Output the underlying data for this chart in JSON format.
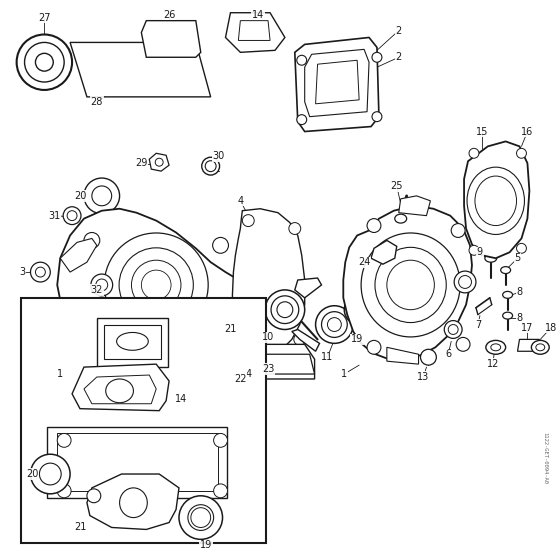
{
  "background_color": "#ffffff",
  "line_color": "#1a1a1a",
  "figsize": [
    5.6,
    5.6
  ],
  "dpi": 100,
  "watermark": "1122-GET-0094-A0"
}
